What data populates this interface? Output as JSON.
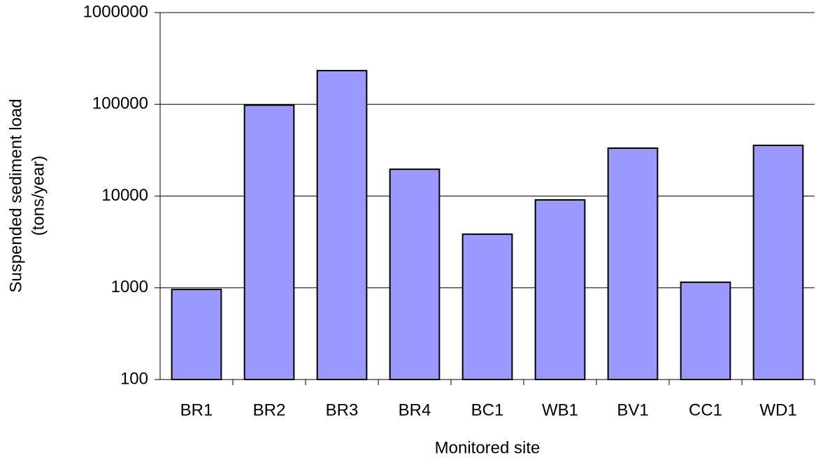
{
  "chart_data": {
    "type": "bar",
    "xlabel": "Monitored site",
    "ylabel": [
      "Suspended sediment load",
      "(tons/year)"
    ],
    "categories": [
      "BR1",
      "BR2",
      "BR3",
      "BR4",
      "BC1",
      "WB1",
      "BV1",
      "CC1",
      "WD1"
    ],
    "values": [
      960,
      98000,
      233000,
      19600,
      3840,
      9080,
      33300,
      1150,
      35700
    ],
    "color": "#9999ff",
    "log_scale": true,
    "ylim": [
      100,
      1000000
    ],
    "yticks": [
      100,
      1000,
      10000,
      100000,
      1000000
    ],
    "grid": true
  }
}
